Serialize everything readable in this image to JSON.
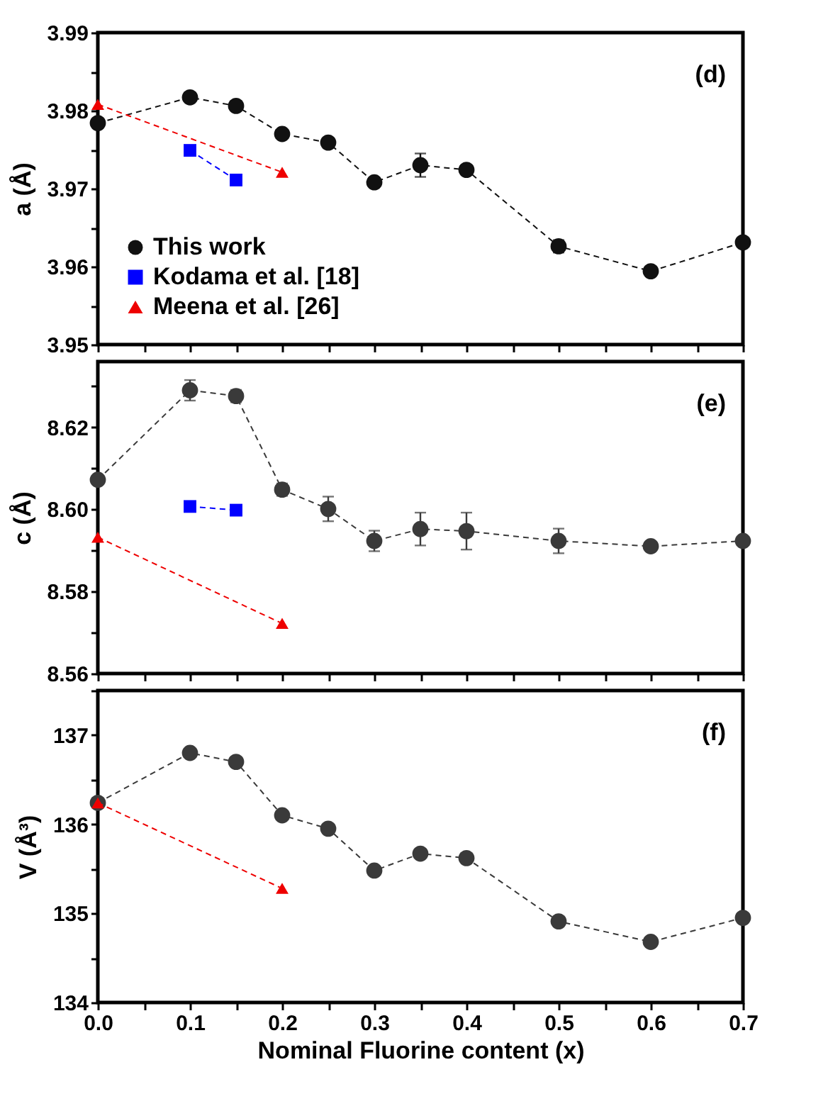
{
  "chart_data": [
    {
      "type": "line",
      "ylabel": "a (Å)",
      "annotations": [
        "(d)"
      ],
      "legend": "bottom left",
      "line_style": "dashed",
      "grid": false,
      "tick_labels": "y",
      "xlim": [
        0,
        0.7
      ],
      "xticks": [
        0,
        {
          "value": 0.05,
          "label": null
        },
        0.1,
        {
          "value": 0.15,
          "label": null
        },
        0.2,
        {
          "value": 0.25,
          "label": null
        },
        0.3,
        {
          "value": 0.35,
          "label": null
        },
        0.4,
        {
          "value": 0.45,
          "label": null
        },
        0.5,
        {
          "value": 0.55,
          "label": null
        },
        0.6,
        {
          "value": 0.65,
          "label": null
        },
        0.7
      ],
      "ylim": [
        3.95,
        3.99
      ],
      "yticks": [
        3.95,
        {
          "value": 3.955,
          "label": null
        },
        3.96,
        {
          "value": 3.965,
          "label": null
        },
        3.97,
        {
          "value": 3.975,
          "label": null
        },
        3.98,
        {
          "value": 3.985,
          "label": null
        },
        3.99
      ],
      "series": [
        {
          "name": "This work",
          "color": "#111111",
          "marker": "circle",
          "x": [
            0,
            0.1,
            0.15,
            0.2,
            0.25,
            0.3,
            0.35,
            0.4,
            0.5,
            0.6,
            0.7
          ],
          "values": [
            3.9784,
            3.9817,
            3.9806,
            3.977,
            3.9759,
            3.9708,
            3.973,
            3.9724,
            3.9626,
            3.9594,
            3.9631
          ],
          "errors": [
            null,
            0.0005,
            null,
            null,
            null,
            null,
            0.0015,
            null,
            0.0008,
            null,
            null
          ]
        },
        {
          "name": "Kodama et al. [18]",
          "color": "#0000ff",
          "marker": "square",
          "x": [
            0.1,
            0.15
          ],
          "values": [
            3.9749,
            3.9711
          ]
        },
        {
          "name": "Meena et al. [26]",
          "color": "#ee0000",
          "marker": "triangle",
          "x": [
            0,
            0.2
          ],
          "values": [
            3.9808,
            3.9721
          ]
        }
      ]
    },
    {
      "type": "line",
      "ylabel": "c (Å)",
      "annotations": [
        "(e)"
      ],
      "line_style": "dashed",
      "grid": false,
      "tick_labels": "y",
      "xlim": [
        0,
        0.7
      ],
      "xticks": [
        0,
        {
          "value": 0.05,
          "label": null
        },
        0.1,
        {
          "value": 0.15,
          "label": null
        },
        0.2,
        {
          "value": 0.25,
          "label": null
        },
        0.3,
        {
          "value": 0.35,
          "label": null
        },
        0.4,
        {
          "value": 0.45,
          "label": null
        },
        0.5,
        {
          "value": 0.55,
          "label": null
        },
        0.6,
        {
          "value": 0.65,
          "label": null
        },
        0.7
      ],
      "ylim": [
        8.56,
        8.636
      ],
      "yticks": [
        8.56,
        {
          "value": 8.57,
          "label": null
        },
        8.58,
        {
          "value": 8.59,
          "label": null
        },
        {
          "value": 8.6,
          "label": "8.60"
        },
        {
          "value": 8.61,
          "label": null
        },
        8.62,
        {
          "value": 8.63,
          "label": null
        }
      ],
      "series": [
        {
          "color": "#3a3a3a",
          "marker": "circle",
          "x": [
            0,
            0.1,
            0.15,
            0.2,
            0.25,
            0.3,
            0.35,
            0.4,
            0.5,
            0.6,
            0.7
          ],
          "values": [
            8.6072,
            8.629,
            8.6276,
            8.6048,
            8.6001,
            8.5923,
            8.5952,
            8.5947,
            8.5923,
            8.591,
            8.5923
          ],
          "errors": [
            null,
            0.0025,
            0.0015,
            0.0015,
            0.003,
            0.0025,
            0.004,
            0.0045,
            0.003,
            null,
            null
          ]
        },
        {
          "color": "#0000ff",
          "marker": "square",
          "x": [
            0.1,
            0.15
          ],
          "values": [
            8.6007,
            8.5998
          ]
        },
        {
          "color": "#ee0000",
          "marker": "triangle",
          "x": [
            0,
            0.2
          ],
          "values": [
            8.5932,
            8.5722
          ]
        }
      ]
    },
    {
      "type": "line",
      "ylabel": "V (Å³)",
      "xlabel": "Nominal Fluorine content (x)",
      "annotations": [
        "(f)"
      ],
      "line_style": "dashed",
      "grid": false,
      "xlim": [
        0,
        0.7
      ],
      "xticks": [
        {
          "value": 0,
          "label": "0.0"
        },
        {
          "value": 0.05,
          "label": null
        },
        0.1,
        {
          "value": 0.15,
          "label": null
        },
        0.2,
        {
          "value": 0.25,
          "label": null
        },
        0.3,
        {
          "value": 0.35,
          "label": null
        },
        0.4,
        {
          "value": 0.45,
          "label": null
        },
        0.5,
        {
          "value": 0.55,
          "label": null
        },
        0.6,
        {
          "value": 0.65,
          "label": null
        },
        0.7
      ],
      "ylim": [
        134,
        137.5
      ],
      "yticks": [
        134,
        {
          "value": 134.5,
          "label": null
        },
        135,
        {
          "value": 135.5,
          "label": null
        },
        136,
        {
          "value": 136.5,
          "label": null
        },
        137,
        {
          "value": 137.5,
          "label": null
        }
      ],
      "series": [
        {
          "color": "#3a3a3a",
          "marker": "circle",
          "x": [
            0,
            0.1,
            0.15,
            0.2,
            0.25,
            0.3,
            0.35,
            0.4,
            0.5,
            0.6,
            0.7
          ],
          "values": [
            136.24,
            136.8,
            136.7,
            136.1,
            135.95,
            135.48,
            135.67,
            135.62,
            134.91,
            134.68,
            134.95
          ]
        },
        {
          "color": "#ee0000",
          "marker": "triangle",
          "x": [
            0,
            0.2
          ],
          "values": [
            136.24,
            135.28
          ]
        }
      ]
    }
  ]
}
